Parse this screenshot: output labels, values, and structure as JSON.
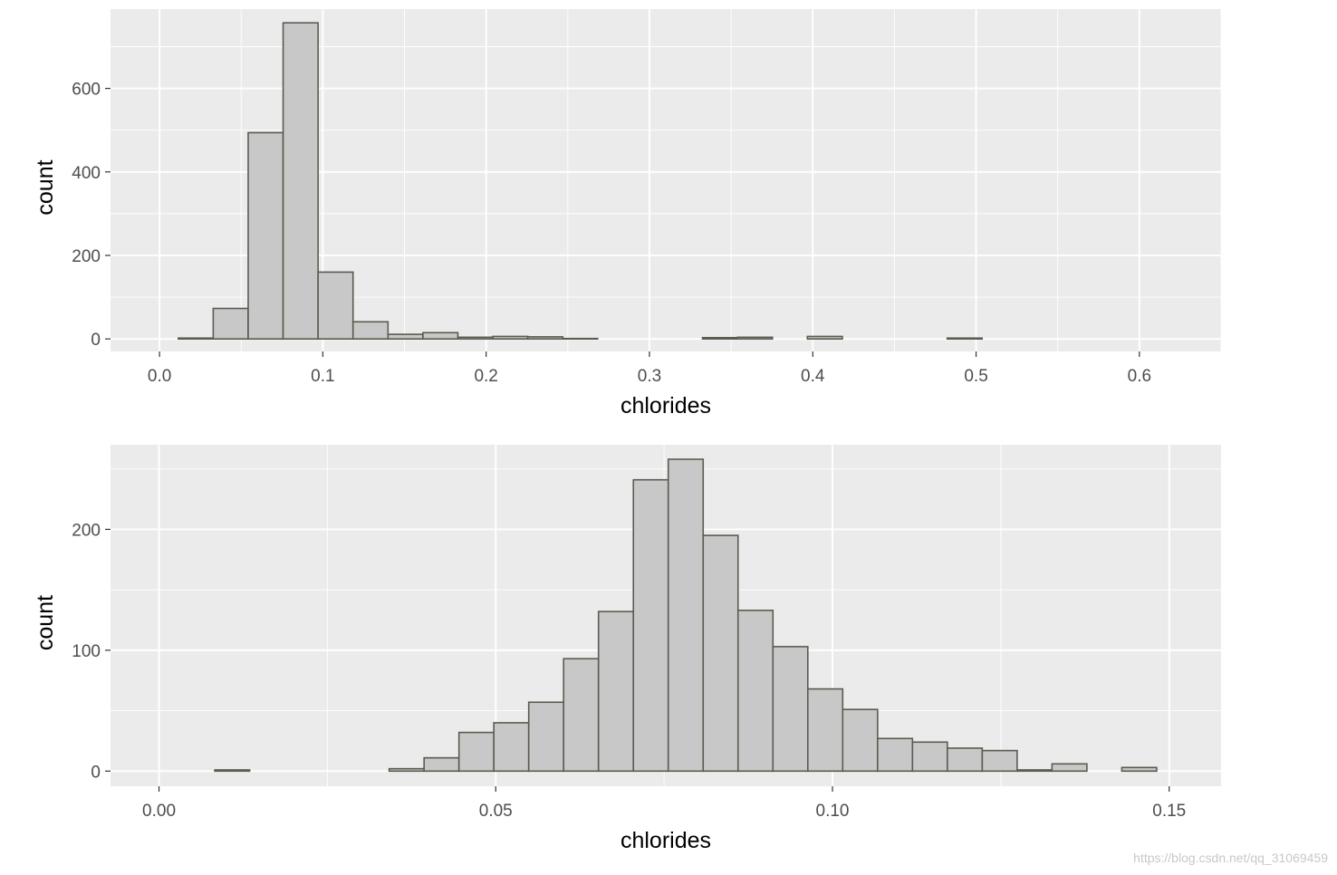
{
  "colors": {
    "panel_bg": "#ebebeb",
    "grid": "#ffffff",
    "bar_fill": "#c8c8c8",
    "bar_stroke": "#5b5b50",
    "tick": "#333333"
  },
  "watermark": "https://blog.csdn.net/qq_31069459",
  "chart_data": [
    {
      "type": "bar",
      "xlabel": "chlorides",
      "ylabel": "count",
      "xlim": [
        -0.03,
        0.65
      ],
      "ylim": [
        -30,
        790
      ],
      "x_ticks": [
        0.0,
        0.1,
        0.2,
        0.3,
        0.4,
        0.5,
        0.6
      ],
      "x_tick_labels": [
        "0.0",
        "0.1",
        "0.2",
        "0.3",
        "0.4",
        "0.5",
        "0.6"
      ],
      "y_ticks": [
        0,
        200,
        400,
        600
      ],
      "y_tick_labels": [
        "0",
        "200",
        "400",
        "600"
      ],
      "grid": true,
      "bin_width": 0.0214,
      "bins_start": 0.0115,
      "values": [
        2,
        73,
        494,
        757,
        160,
        41,
        11,
        15,
        4,
        6,
        5,
        1,
        0,
        0,
        0,
        3,
        4,
        0,
        6,
        0,
        0,
        0,
        2,
        0,
        0,
        0,
        0,
        0
      ]
    },
    {
      "type": "bar",
      "xlabel": "chlorides",
      "ylabel": "count",
      "xlim": [
        -0.0072,
        0.1577
      ],
      "ylim": [
        -12.5,
        270
      ],
      "x_ticks": [
        0.0,
        0.05,
        0.1,
        0.15
      ],
      "x_tick_labels": [
        "0.00",
        "0.05",
        "0.10",
        "0.15"
      ],
      "y_ticks": [
        0,
        100,
        200
      ],
      "y_tick_labels": [
        "0",
        "100",
        "200"
      ],
      "grid": true,
      "bin_width": 0.00518,
      "bins_start": 0.0031,
      "values": [
        0,
        1,
        0,
        0,
        0,
        0,
        2,
        11,
        32,
        40,
        57,
        93,
        132,
        241,
        258,
        195,
        133,
        103,
        68,
        51,
        27,
        24,
        19,
        17,
        1,
        6,
        0,
        3
      ]
    }
  ]
}
